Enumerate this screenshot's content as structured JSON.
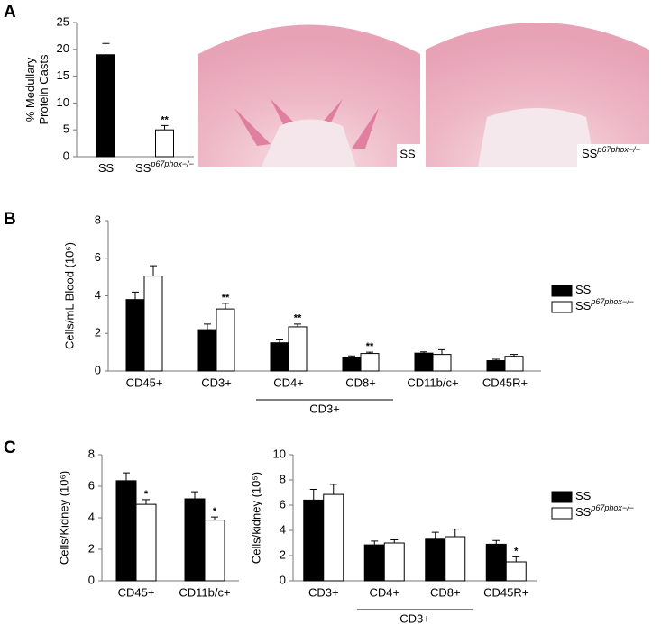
{
  "panels": [
    "A",
    "B",
    "C"
  ],
  "images": [
    {
      "label": "SS"
    },
    {
      "label": "SS",
      "label_superscript": "p67phox−/−"
    }
  ],
  "chart_data": [
    {
      "type": "bar",
      "y_label": [
        "% Medullary",
        "Protein Casts"
      ],
      "categories": [
        null
      ],
      "ylim": [
        0,
        25
      ],
      "yticks": [
        0,
        5,
        10,
        15,
        20,
        25
      ],
      "legend": false,
      "series": [
        {
          "name": "SS",
          "color": "#000000",
          "values": [
            19
          ],
          "errors": [
            2.1
          ],
          "annotations": [
            null
          ]
        },
        {
          "name": "SS",
          "name_superscript": "p67phox−/−",
          "color": "#ffffff",
          "values": [
            5
          ],
          "errors": [
            0.8
          ],
          "annotations": [
            "**"
          ]
        }
      ]
    },
    {
      "type": "bar",
      "y_label": [
        "Cells/mL Blood (10⁶)"
      ],
      "categories": [
        "CD45+",
        "CD3+",
        "CD4+",
        "CD8+",
        "CD11b/c+",
        "CD45R+"
      ],
      "category_group": {
        "label": "CD3+",
        "from": "CD4+",
        "to": "CD8+"
      },
      "ylim": [
        0,
        8
      ],
      "yticks": [
        0,
        2,
        4,
        6,
        8
      ],
      "legend": true,
      "series": [
        {
          "name": "SS",
          "color": "#000000",
          "values": [
            3.8,
            2.2,
            1.5,
            0.7,
            0.95,
            0.55
          ],
          "errors": [
            0.4,
            0.3,
            0.15,
            0.1,
            0.07,
            0.07
          ],
          "annotations": [
            null,
            null,
            null,
            null,
            null,
            null
          ]
        },
        {
          "name": "SS",
          "name_superscript": "p67phox−/−",
          "color": "#ffffff",
          "values": [
            5.05,
            3.3,
            2.35,
            0.93,
            0.88,
            0.78
          ],
          "errors": [
            0.55,
            0.3,
            0.15,
            0.07,
            0.25,
            0.1
          ],
          "annotations": [
            null,
            "**",
            "**",
            "**",
            null,
            null
          ]
        }
      ]
    },
    {
      "type": "bar",
      "y_label": [
        "Cells/Kidney (10⁶)"
      ],
      "categories": [
        "CD45+",
        "CD11b/c+"
      ],
      "ylim": [
        0,
        8
      ],
      "yticks": [
        0,
        2,
        4,
        6,
        8
      ],
      "legend": false,
      "series": [
        {
          "name": "SS",
          "color": "#000000",
          "values": [
            6.35,
            5.2
          ],
          "errors": [
            0.5,
            0.45
          ],
          "annotations": [
            null,
            null
          ]
        },
        {
          "name": "SS",
          "name_superscript": "p67phox−/−",
          "color": "#ffffff",
          "values": [
            4.85,
            3.85
          ],
          "errors": [
            0.3,
            0.2
          ],
          "annotations": [
            "*",
            "*"
          ]
        }
      ]
    },
    {
      "type": "bar",
      "y_label": [
        "Cells/kidney (10⁵)"
      ],
      "categories": [
        "CD3+",
        "CD4+",
        "CD8+",
        "CD45R+"
      ],
      "category_group": {
        "label": "CD3+",
        "from": "CD4+",
        "to": "CD8+"
      },
      "ylim": [
        0,
        10
      ],
      "yticks": [
        0,
        2,
        4,
        6,
        8,
        10
      ],
      "legend": true,
      "series": [
        {
          "name": "SS",
          "color": "#000000",
          "values": [
            6.4,
            2.85,
            3.3,
            2.9
          ],
          "errors": [
            0.85,
            0.3,
            0.55,
            0.3
          ],
          "annotations": [
            null,
            null,
            null,
            null
          ]
        },
        {
          "name": "SS",
          "name_superscript": "p67phox−/−",
          "color": "#ffffff",
          "values": [
            6.85,
            3.0,
            3.5,
            1.5
          ],
          "errors": [
            0.8,
            0.25,
            0.6,
            0.4
          ],
          "annotations": [
            null,
            null,
            null,
            "*"
          ]
        }
      ]
    }
  ]
}
